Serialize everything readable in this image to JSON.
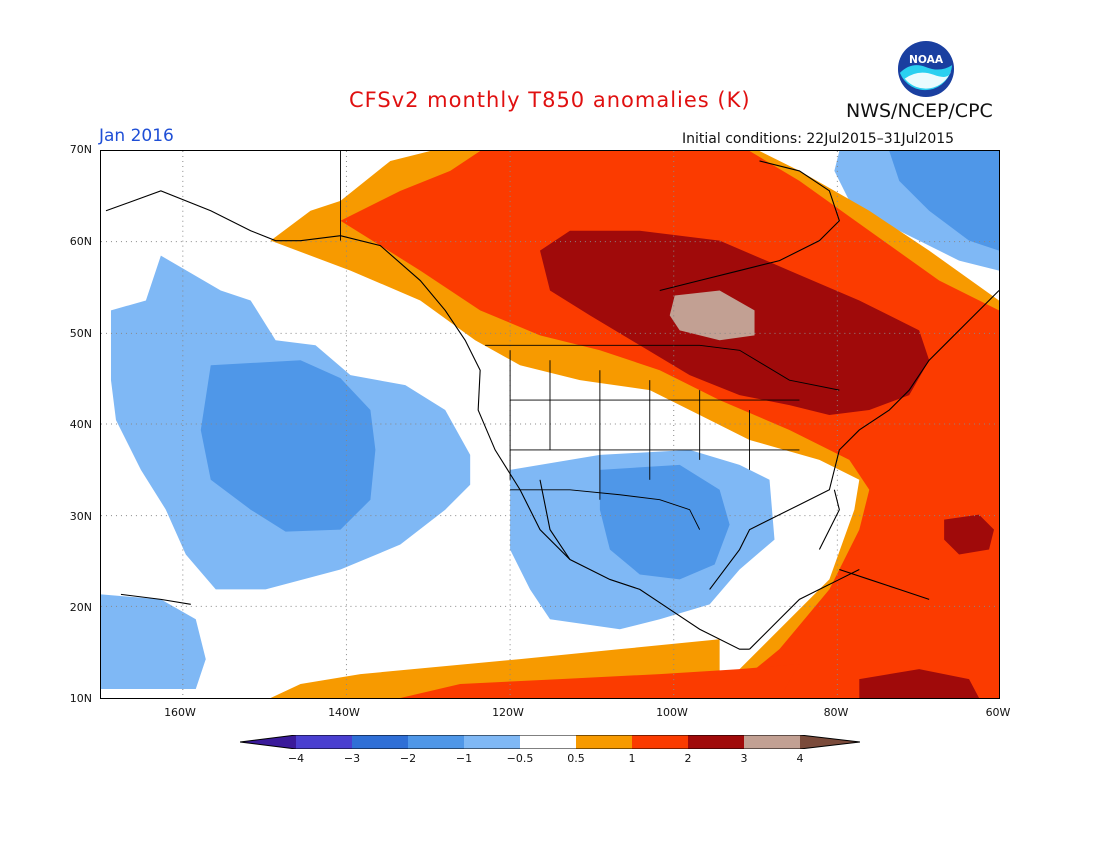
{
  "header": {
    "title": "CFSv2 monthly T850 anomalies (K)",
    "period": "Jan 2016",
    "initial_conditions": "Initial conditions: 22Jul2015–31Jul2015",
    "org": "NWS/NCEP/CPC",
    "logo_text": "NOAA"
  },
  "colors": {
    "title": "#e01010",
    "period": "#1f4fd6",
    "neg4": "#3a1a9a",
    "neg3": "#4a3fd0",
    "neg2": "#2f6fd6",
    "neg1": "#4f97e8",
    "neg05": "#7fb8f5",
    "zero": "#ffffff",
    "pos05": "#f79a00",
    "pos1": "#fb3b00",
    "pos2": "#e01a00",
    "pos3": "#a00a0a",
    "pos4": "#c2a093",
    "pos5": "#7a4a3a"
  },
  "map": {
    "lat_labels": [
      "70N",
      "60N",
      "50N",
      "40N",
      "30N",
      "20N",
      "10N"
    ],
    "lon_labels": [
      "160W",
      "140W",
      "120W",
      "100W",
      "80W",
      "60W"
    ]
  },
  "colorbar": {
    "labels": [
      "−4",
      "−3",
      "−2",
      "−1",
      "−0.5",
      "0.5",
      "1",
      "2",
      "3",
      "4"
    ]
  }
}
